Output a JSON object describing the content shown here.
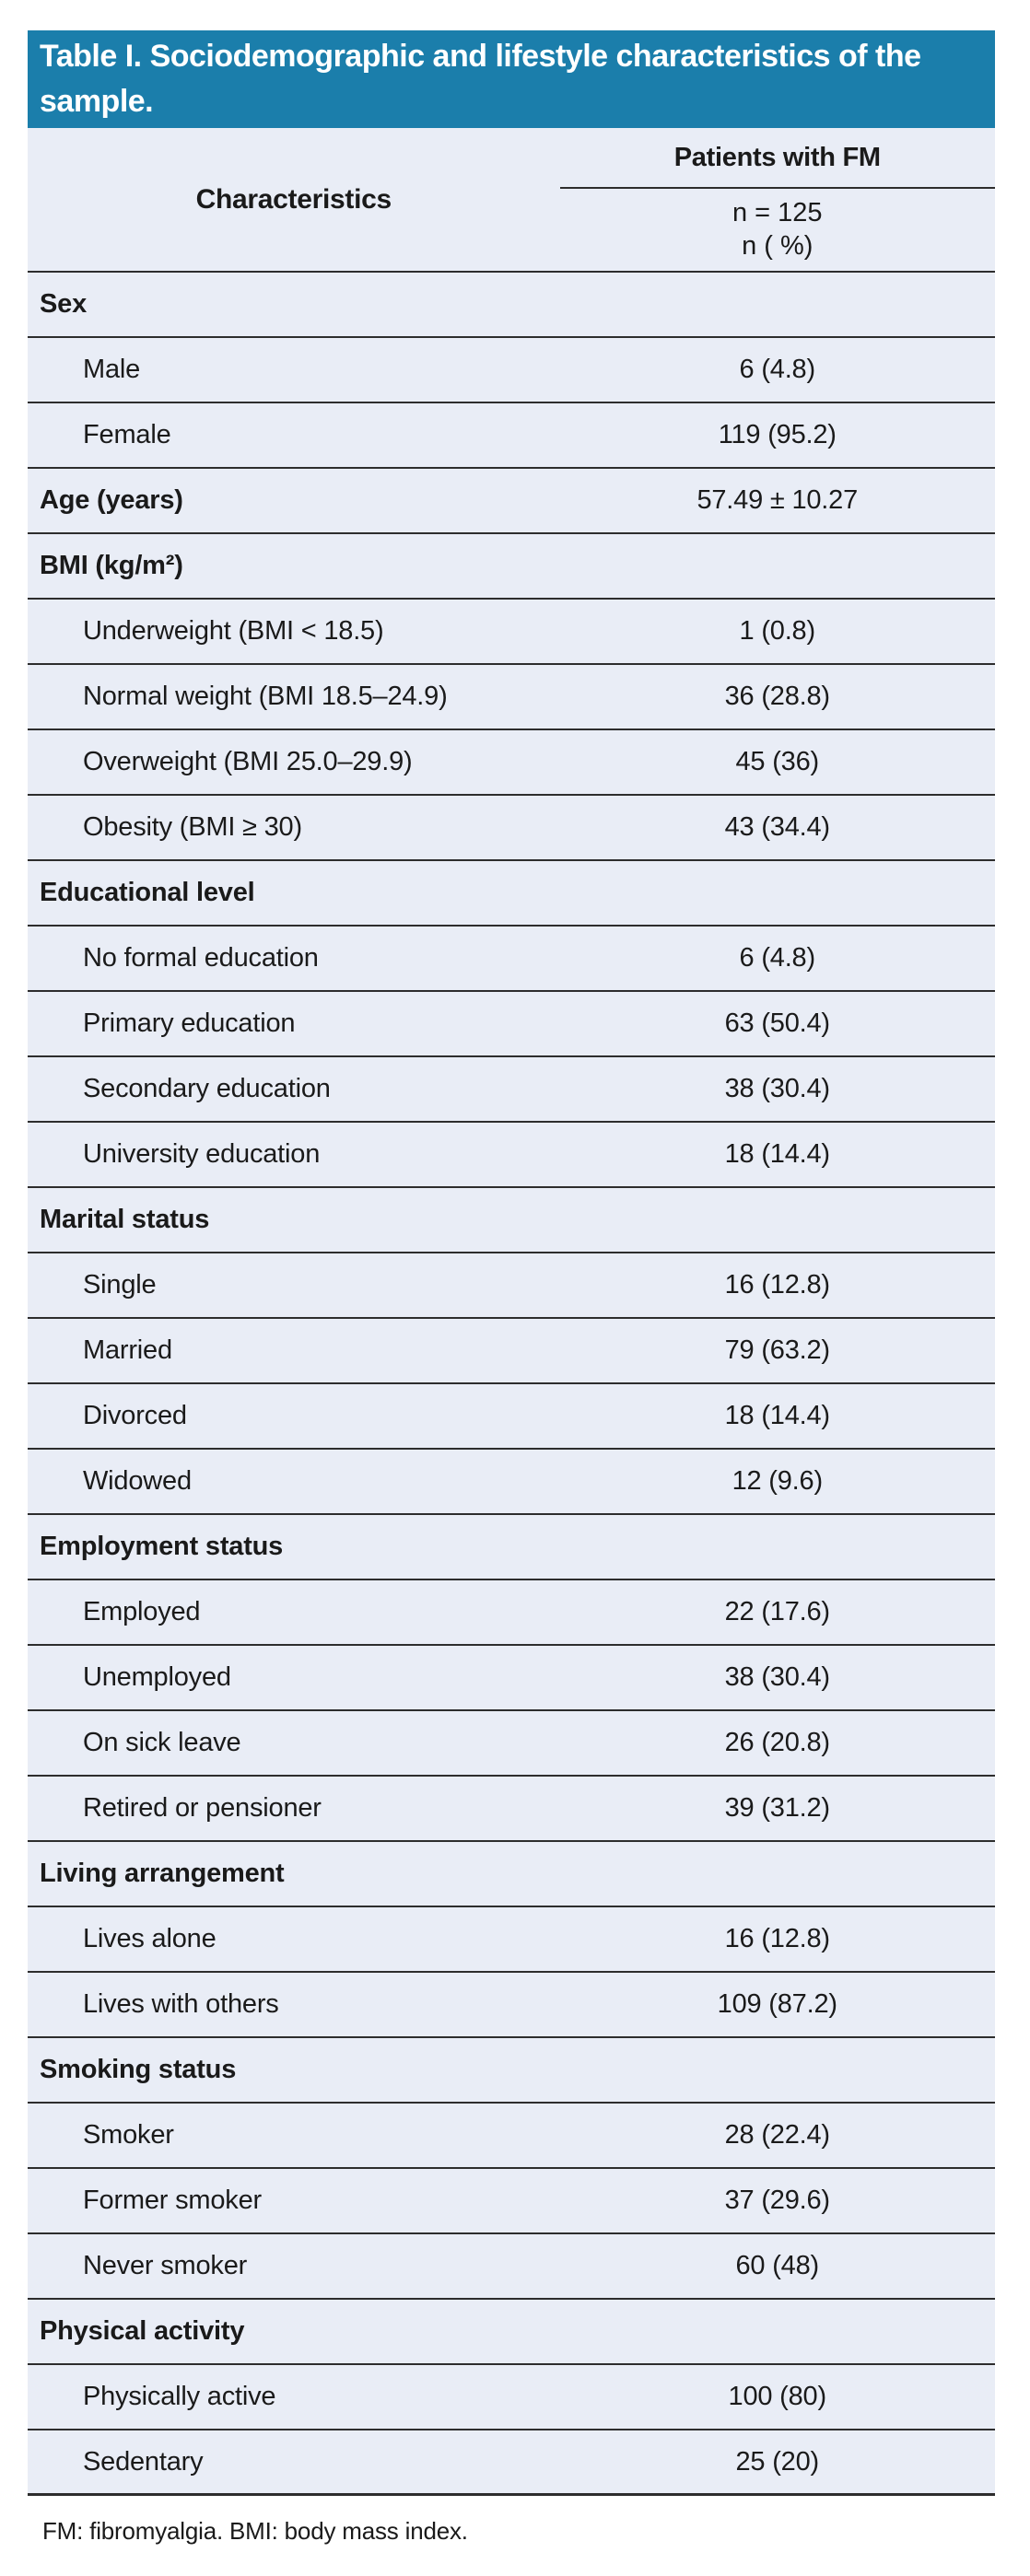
{
  "table": {
    "title": "Table I. Sociodemographic and lifestyle characteristics of the sample.",
    "columns": {
      "left_header": "Characteristics",
      "right_header": "Patients with FM",
      "sample_size": "n = 125",
      "unit": "n ( %)"
    },
    "rows": [
      {
        "label": "Sex",
        "value": "",
        "bold": true
      },
      {
        "label": "Male",
        "value": "6 (4.8)",
        "bold": false
      },
      {
        "label": "Female",
        "value": "119 (95.2)",
        "bold": false
      },
      {
        "label": "Age (years)",
        "value": "57.49 ± 10.27",
        "bold": true
      },
      {
        "label": "BMI (kg/m²)",
        "value": "",
        "bold": true
      },
      {
        "label": "Underweight (BMI < 18.5)",
        "value": "1 (0.8)",
        "bold": false
      },
      {
        "label": "Normal weight (BMI 18.5–24.9)",
        "value": "36 (28.8)",
        "bold": false
      },
      {
        "label": "Overweight (BMI 25.0–29.9)",
        "value": "45 (36)",
        "bold": false
      },
      {
        "label": "Obesity (BMI ≥ 30)",
        "value": "43 (34.4)",
        "bold": false
      },
      {
        "label": "Educational level",
        "value": "",
        "bold": true
      },
      {
        "label": "No formal education",
        "value": "6 (4.8)",
        "bold": false
      },
      {
        "label": "Primary education",
        "value": "63 (50.4)",
        "bold": false
      },
      {
        "label": "Secondary education",
        "value": "38 (30.4)",
        "bold": false
      },
      {
        "label": "University education",
        "value": "18 (14.4)",
        "bold": false
      },
      {
        "label": "Marital status",
        "value": "",
        "bold": true
      },
      {
        "label": "Single",
        "value": "16 (12.8)",
        "bold": false
      },
      {
        "label": "Married",
        "value": "79 (63.2)",
        "bold": false
      },
      {
        "label": "Divorced",
        "value": "18 (14.4)",
        "bold": false
      },
      {
        "label": "Widowed",
        "value": "12 (9.6)",
        "bold": false
      },
      {
        "label": "Employment status",
        "value": "",
        "bold": true
      },
      {
        "label": "Employed",
        "value": "22 (17.6)",
        "bold": false
      },
      {
        "label": "Unemployed",
        "value": "38 (30.4)",
        "bold": false
      },
      {
        "label": "On sick leave",
        "value": "26 (20.8)",
        "bold": false
      },
      {
        "label": "Retired or pensioner",
        "value": "39 (31.2)",
        "bold": false
      },
      {
        "label": "Living arrangement",
        "value": "",
        "bold": true
      },
      {
        "label": "Lives alone",
        "value": "16 (12.8)",
        "bold": false
      },
      {
        "label": "Lives with others",
        "value": "109 (87.2)",
        "bold": false
      },
      {
        "label": "Smoking status",
        "value": "",
        "bold": true
      },
      {
        "label": "Smoker",
        "value": "28 (22.4)",
        "bold": false
      },
      {
        "label": "Former smoker",
        "value": "37 (29.6)",
        "bold": false
      },
      {
        "label": "Never smoker",
        "value": "60 (48)",
        "bold": false
      },
      {
        "label": "Physical activity",
        "value": "",
        "bold": true
      },
      {
        "label": "Physically active",
        "value": "100 (80)",
        "bold": false
      },
      {
        "label": "Sedentary",
        "value": "25 (20)",
        "bold": false
      }
    ],
    "footnote": "FM: fibromyalgia. BMI: body mass index.",
    "colors": {
      "header_bg": "#1b7eab",
      "header_text": "#ffffff",
      "row_bg": "#e9edf6",
      "border": "#2d2d2d",
      "text": "#1a1a1a"
    }
  }
}
